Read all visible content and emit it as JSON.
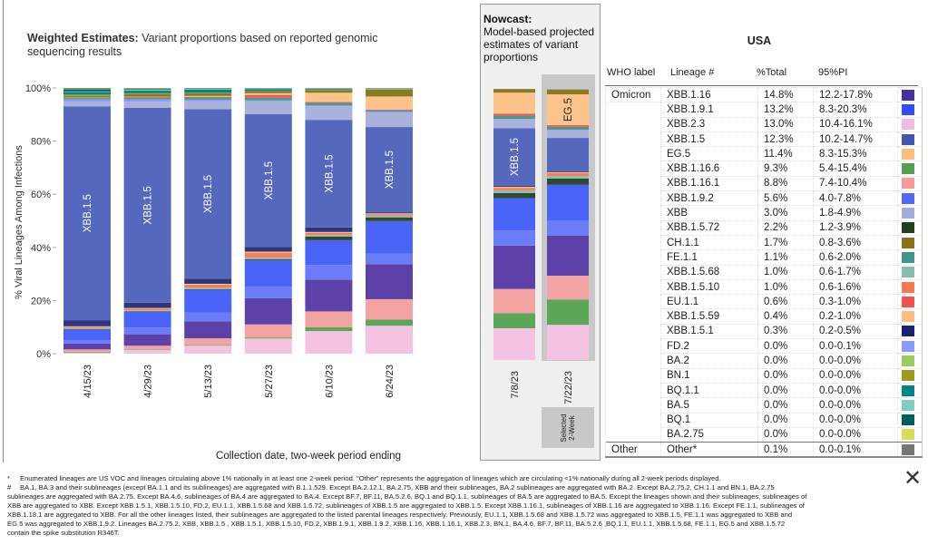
{
  "weighted_title_bold": "Weighted Estimates:",
  "weighted_title_rest": " Variant proportions based on reported genomic sequencing results",
  "nowcast_title_bold": "Nowcast:",
  "nowcast_title_rest": "Model-based projected estimates of variant proportions",
  "selected_label": "Selected 2-Week",
  "close_icon": "close-x-icon",
  "chart_data": {
    "type": "bar",
    "stacked": true,
    "ylabel": "% Viral Lineages Among Infections",
    "xlabel": "Collection date, two-week period ending",
    "ylim": [
      0,
      100
    ],
    "yticks": [
      "0%",
      "20%",
      "40%",
      "60%",
      "80%",
      "100%"
    ],
    "categories": [
      "4/15/23",
      "4/29/23",
      "5/13/23",
      "5/27/23",
      "6/10/23",
      "6/24/23",
      "7/8/23",
      "7/22/23"
    ],
    "groups": {
      "weighted": [
        "4/15/23",
        "4/29/23",
        "5/13/23",
        "5/27/23",
        "6/10/23",
        "6/24/23"
      ],
      "nowcast": [
        "7/8/23",
        "7/22/23"
      ]
    },
    "selected": "7/22/23",
    "bar_labels": [
      "XBB.1.5",
      "XBB.1.5",
      "XBB.1.5",
      "XBB.1.5",
      "XBB.1.5",
      "XBB.1.5",
      "XBB.1.5",
      "EG.5"
    ],
    "series": [
      {
        "name": "XBB.2.3",
        "color": "#f4c3e1",
        "values": [
          0.3,
          1.5,
          3.0,
          5.7,
          8.5,
          10.5,
          11.7,
          13.0
        ]
      },
      {
        "name": "XBB.1.16.6",
        "color": "#5ca65a",
        "values": [
          0.3,
          0.2,
          0.3,
          0.4,
          1.4,
          2.3,
          5.6,
          9.3
        ]
      },
      {
        "name": "XBB.1.16.1",
        "color": "#f4a3a3",
        "values": [
          1.0,
          1.3,
          2.5,
          4.9,
          6.0,
          7.7,
          8.9,
          8.8
        ]
      },
      {
        "name": "XBB.1.16",
        "color": "#5c41a8",
        "values": [
          2.2,
          4.3,
          6.4,
          9.9,
          12.0,
          13.1,
          16.0,
          14.8
        ]
      },
      {
        "name": "XBB.1.9.2",
        "color": "#6a7df7",
        "values": [
          1.3,
          2.5,
          3.3,
          4.3,
          5.5,
          4.0,
          5.6,
          5.6
        ]
      },
      {
        "name": "XBB.1.9.1",
        "color": "#4a64f7",
        "values": [
          4.0,
          6.0,
          8.5,
          10.0,
          9.3,
          12.3,
          11.9,
          13.2
        ]
      },
      {
        "name": "XBB.1.5.72",
        "color": "#2e4a2b",
        "values": [
          0.2,
          0.2,
          0.3,
          0.4,
          1.4,
          1.4,
          1.9,
          2.2
        ]
      },
      {
        "name": "XBB.1.5.68",
        "color": "#8bc0b6",
        "values": [
          0.3,
          0.3,
          0.5,
          0.5,
          0.5,
          0.6,
          1.0,
          1.0
        ]
      },
      {
        "name": "XBB.1.5.10",
        "color": "#f97d5a",
        "values": [
          0.5,
          0.6,
          1.2,
          1.9,
          0.8,
          0.6,
          0.9,
          1.0
        ]
      },
      {
        "name": "XBB.1.5.59",
        "color": "#ffbf80",
        "values": [
          0.2,
          0.3,
          0.3,
          0.4,
          0.4,
          0.3,
          0.4,
          0.4
        ]
      },
      {
        "name": "XBB.1.5.1",
        "color": "#2b3580",
        "values": [
          2.3,
          2.0,
          1.9,
          1.8,
          1.7,
          0.4,
          0.4,
          0.3
        ]
      },
      {
        "name": "XBB.1.5",
        "color": "#5668bd",
        "values": [
          80.5,
          73.3,
          63.8,
          49.9,
          40.5,
          32.1,
          21.2,
          12.3
        ]
      },
      {
        "name": "XBB",
        "color": "#aab2dc",
        "values": [
          1.8,
          2.3,
          3.0,
          4.9,
          5.1,
          5.5,
          3.3,
          3.0
        ]
      },
      {
        "name": "FD.2",
        "color": "#8a9cff",
        "values": [
          0.8,
          0.9,
          0.6,
          0.3,
          0.3,
          0.3,
          0.1,
          0.0
        ]
      },
      {
        "name": "FE.1.1",
        "color": "#4a9a91",
        "values": [
          0.5,
          0.6,
          0.8,
          1.0,
          1.0,
          0.5,
          1.2,
          1.1
        ]
      },
      {
        "name": "EU.1.1",
        "color": "#f05656",
        "values": [
          0.1,
          0.3,
          0.3,
          1.1,
          0.3,
          0.3,
          0.7,
          0.6
        ]
      },
      {
        "name": "EG.5",
        "color": "#ffc48b",
        "values": [
          0.1,
          0.1,
          0.3,
          0.6,
          3.5,
          4.9,
          7.8,
          11.4
        ]
      },
      {
        "name": "CH.1.1",
        "color": "#8a7b21",
        "values": [
          0.6,
          1.0,
          1.0,
          0.8,
          1.0,
          2.6,
          1.3,
          1.7
        ]
      },
      {
        "name": "BN.1",
        "color": "#a09b22",
        "values": [
          0.5,
          0.3,
          0.2,
          0.1,
          0.1,
          0.1,
          0.0,
          0.0
        ]
      },
      {
        "name": "BQ.1.1",
        "color": "#00858b",
        "values": [
          1.0,
          1.0,
          1.2,
          0.7,
          0.3,
          0.1,
          0.0,
          0.0
        ]
      },
      {
        "name": "BA.5",
        "color": "#80cfc5",
        "values": [
          0.2,
          0.3,
          0.2,
          0.1,
          0.1,
          0.1,
          0.0,
          0.0
        ]
      },
      {
        "name": "BQ.1",
        "color": "#005f5f",
        "values": [
          0.8,
          0.3,
          0.2,
          0.1,
          0.1,
          0.1,
          0.0,
          0.0
        ]
      },
      {
        "name": "BA.2.75",
        "color": "#d8e052",
        "values": [
          0.2,
          0.2,
          0.1,
          0.1,
          0.1,
          0.1,
          0.0,
          0.0
        ]
      },
      {
        "name": "BA.2",
        "color": "#9acd62",
        "values": [
          0.0,
          0.0,
          0.0,
          0.0,
          0.0,
          0.0,
          0.0,
          0.0
        ]
      },
      {
        "name": "Other",
        "color": "#777777",
        "values": [
          0.3,
          0.2,
          0.1,
          0.1,
          0.1,
          0.1,
          0.1,
          0.1
        ]
      }
    ]
  },
  "table": {
    "region": "USA",
    "headers": [
      "WHO label",
      "Lineage #",
      "%Total",
      "95%PI"
    ],
    "rows": [
      {
        "who": "Omicron",
        "lineage": "XBB.1.16",
        "pct": "14.8%",
        "pi": "12.2-17.8%",
        "color": "#4a2fa0"
      },
      {
        "who": "",
        "lineage": "XBB.1.9.1",
        "pct": "13.2%",
        "pi": "8.3-20.3%",
        "color": "#2f4ef7"
      },
      {
        "who": "",
        "lineage": "XBB.2.3",
        "pct": "13.0%",
        "pi": "10.4-16.1%",
        "color": "#f4b9de"
      },
      {
        "who": "",
        "lineage": "XBB.1.5",
        "pct": "12.3%",
        "pi": "10.2-14.7%",
        "color": "#4254b0"
      },
      {
        "who": "",
        "lineage": "EG.5",
        "pct": "11.4%",
        "pi": "8.3-15.3%",
        "color": "#ffbd80"
      },
      {
        "who": "",
        "lineage": "XBB.1.16.6",
        "pct": "9.3%",
        "pi": "5.4-15.4%",
        "color": "#52a04e"
      },
      {
        "who": "",
        "lineage": "XBB.1.16.1",
        "pct": "8.8%",
        "pi": "7.4-10.4%",
        "color": "#f69a98"
      },
      {
        "who": "",
        "lineage": "XBB.1.9.2",
        "pct": "5.6%",
        "pi": "4.0-7.8%",
        "color": "#5468f7"
      },
      {
        "who": "",
        "lineage": "XBB",
        "pct": "3.0%",
        "pi": "1.8-4.9%",
        "color": "#a4abdd"
      },
      {
        "who": "",
        "lineage": "XBB.1.5.72",
        "pct": "2.2%",
        "pi": "1.2-3.9%",
        "color": "#22401f"
      },
      {
        "who": "",
        "lineage": "CH.1.1",
        "pct": "1.7%",
        "pi": "0.8-3.6%",
        "color": "#857316"
      },
      {
        "who": "",
        "lineage": "FE.1.1",
        "pct": "1.1%",
        "pi": "0.6-2.0%",
        "color": "#3f958b"
      },
      {
        "who": "",
        "lineage": "XBB.1.5.68",
        "pct": "1.0%",
        "pi": "0.6-1.7%",
        "color": "#86bdb3"
      },
      {
        "who": "",
        "lineage": "XBB.1.5.10",
        "pct": "1.0%",
        "pi": "0.6-1.6%",
        "color": "#fb7752"
      },
      {
        "who": "",
        "lineage": "EU.1.1",
        "pct": "0.6%",
        "pi": "0.3-1.0%",
        "color": "#f25252"
      },
      {
        "who": "",
        "lineage": "XBB.1.5.59",
        "pct": "0.4%",
        "pi": "0.2-1.0%",
        "color": "#ffbb80"
      },
      {
        "who": "",
        "lineage": "XBB.1.5.1",
        "pct": "0.3%",
        "pi": "0.2-0.5%",
        "color": "#1c1f7a"
      },
      {
        "who": "",
        "lineage": "FD.2",
        "pct": "0.0%",
        "pi": "0.0-0.1%",
        "color": "#8a9aff"
      },
      {
        "who": "",
        "lineage": "BA.2",
        "pct": "0.0%",
        "pi": "0.0-0.0%",
        "color": "#9bcb5f"
      },
      {
        "who": "",
        "lineage": "BN.1",
        "pct": "0.0%",
        "pi": "0.0-0.0%",
        "color": "#9d9a1f"
      },
      {
        "who": "",
        "lineage": "BQ.1.1",
        "pct": "0.0%",
        "pi": "0.0-0.0%",
        "color": "#00838a"
      },
      {
        "who": "",
        "lineage": "BA.5",
        "pct": "0.0%",
        "pi": "0.0-0.0%",
        "color": "#7fccc3"
      },
      {
        "who": "",
        "lineage": "BQ.1",
        "pct": "0.0%",
        "pi": "0.0-0.0%",
        "color": "#005d5d"
      },
      {
        "who": "",
        "lineage": "BA.2.75",
        "pct": "0.0%",
        "pi": "0.0-0.0%",
        "color": "#d6e050"
      },
      {
        "who": "Other",
        "lineage": "Other*",
        "pct": "0.1%",
        "pi": "0.0-0.1%",
        "color": "#777777"
      }
    ]
  },
  "footnotes": [
    {
      "mark": "*",
      "text": "Enumerated lineages are US VOC and lineages circulating above 1% nationally in at least one 2-week period. \"Other\" represents the aggregation of lineages which are circulating <1% nationally during all 2-week periods displayed."
    },
    {
      "mark": "#",
      "text": "BA.1, BA.3 and their sublineages (except BA.1.1 and its sublineages) are aggregated with B.1.1.529. Except BA.2.12.1, BA.2.75, XBB and their sublineages, BA.2 sublineages are aggregated with BA.2. Except BA.2.75.2, CH.1.1 and BN.1, BA.2.75"
    },
    {
      "mark": "",
      "text": "sublineages are aggregated with BA.2.75. Except BA.4.6, sublineages of BA.4 are aggregated to BA.4. Except BF.7, BF.11, BA.5.2.6, BQ.1 and BQ.1.1, sublineages of BA.5 are aggregated to BA.5. Except the lineages shown and their sublineages, sublineages of"
    },
    {
      "mark": "",
      "text": "XBB are aggregated to XBB. Except XBB.1.5.1, XBB.1.5.10, FD.2, EU.1.1, XBB.1.5.68 and XBB.1.5.72, sublineages of XBB.1.5 are aggregated to XBB.1.5. Except XBB.1.16.1, sublineages of XBB.1.16 are aggregated to XBB.1.16. Except FE.1.1, sublineages of"
    },
    {
      "mark": "",
      "text": "XBB.1.18.1 are aggregated to XBB. For all the other lineages listed, their sublineages are aggregated to the listed parental lineages respectively. Previously, EU.1.1, XBB.1.5.68 and XBB.1.5.72 was aggregated to XBB.1.5, FE.1.1  was aggregated to XBB and"
    },
    {
      "mark": "",
      "text": "EG.5 was aggregated to XBB.1.9.2. Lineages BA.2.75.2, XBB, XBB.1.5 , XBB.1.5.1, XBB.1.5.10, FD.2, XBB.1.9.1, XBB.1.9.2, XBB.1.16, XBB.1.16.1, XBB.2.3, BN.1, BA.4.6, BF.7, BF.11, BA.5.2.6 ,BQ.1.1, EU.1.1, XBB.1.5.68, FE.1.1, EG.5 and XBB.1.5.72"
    },
    {
      "mark": "",
      "text": "contain the spike substitution R346T."
    }
  ]
}
